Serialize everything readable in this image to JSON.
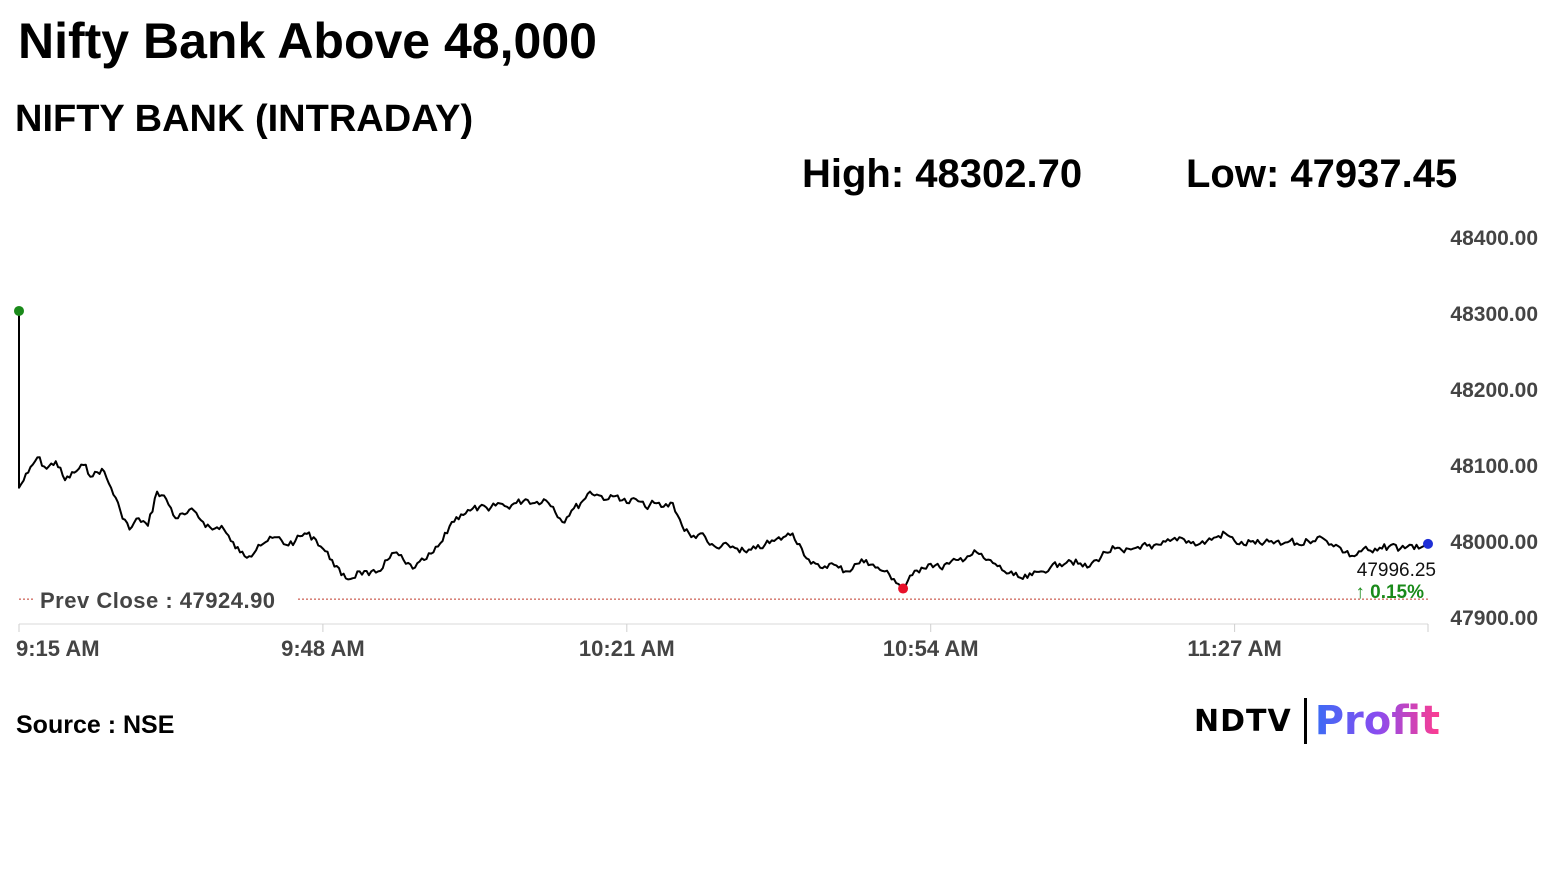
{
  "headline": "Nifty Bank Above 48,000",
  "subtitle": "NIFTY BANK (INTRADAY)",
  "stats": {
    "high": "High: 48302.70",
    "low": "Low: 47937.45"
  },
  "source": "Source : NSE",
  "logo": {
    "ndtv": "NDTV",
    "profit": "Profit"
  },
  "colors": {
    "line": "#000000",
    "high_marker": "#1a8a1a",
    "low_marker": "#e8102a",
    "last_marker": "#1f2fd6",
    "prev_close_line": "#c0392b",
    "change_up": "#1a8a1a",
    "tick_label": "#444444"
  },
  "chart_data": {
    "type": "line",
    "title": "",
    "xlabel": "",
    "ylabel": "",
    "x_range": [
      "9:15 AM",
      "11:48 AM"
    ],
    "x_ticks": [
      "9:15 AM",
      "9:48 AM",
      "10:21 AM",
      "10:54 AM",
      "11:27 AM"
    ],
    "ylim": [
      47900,
      48400
    ],
    "y_ticks": [
      "47900.00",
      "48000.00",
      "48100.00",
      "48200.00",
      "48300.00",
      "48400.00"
    ],
    "grid": false,
    "prev_close": {
      "label": "Prev Close : 47924.90",
      "value": 47924.9
    },
    "last": {
      "label": "47996.25",
      "value": 47996.25,
      "change": "0.15%",
      "direction": "up"
    },
    "markers": [
      {
        "kind": "high",
        "time": "9:15",
        "value": 48302.7
      },
      {
        "kind": "low",
        "time": "10:51",
        "value": 47937.45
      },
      {
        "kind": "last",
        "time": "11:48",
        "value": 47996.25
      }
    ],
    "series": [
      {
        "points": [
          [
            "9:15",
            48302.7
          ],
          [
            "9:15",
            48070
          ],
          [
            "9:16",
            48090
          ],
          [
            "9:17",
            48110
          ],
          [
            "9:18",
            48095
          ],
          [
            "9:19",
            48105
          ],
          [
            "9:20",
            48080
          ],
          [
            "9:21",
            48090
          ],
          [
            "9:22",
            48100
          ],
          [
            "9:23",
            48085
          ],
          [
            "9:24",
            48095
          ],
          [
            "9:25",
            48070
          ],
          [
            "9:26",
            48040
          ],
          [
            "9:27",
            48015
          ],
          [
            "9:28",
            48030
          ],
          [
            "9:29",
            48020
          ],
          [
            "9:30",
            48065
          ],
          [
            "9:31",
            48055
          ],
          [
            "9:32",
            48030
          ],
          [
            "9:33",
            48035
          ],
          [
            "9:34",
            48040
          ],
          [
            "9:35",
            48025
          ],
          [
            "9:36",
            48015
          ],
          [
            "9:37",
            48020
          ],
          [
            "9:38",
            48000
          ],
          [
            "9:39",
            47985
          ],
          [
            "9:40",
            47980
          ],
          [
            "9:41",
            47995
          ],
          [
            "9:42",
            48000
          ],
          [
            "9:43",
            48005
          ],
          [
            "9:44",
            47995
          ],
          [
            "9:45",
            48000
          ],
          [
            "9:46",
            48010
          ],
          [
            "9:47",
            48005
          ],
          [
            "9:48",
            47990
          ],
          [
            "9:49",
            47975
          ],
          [
            "9:50",
            47955
          ],
          [
            "9:51",
            47950
          ],
          [
            "9:52",
            47960
          ],
          [
            "9:53",
            47955
          ],
          [
            "9:54",
            47960
          ],
          [
            "9:55",
            47975
          ],
          [
            "9:56",
            47985
          ],
          [
            "9:57",
            47970
          ],
          [
            "9:58",
            47965
          ],
          [
            "9:59",
            47975
          ],
          [
            "10:00",
            47985
          ],
          [
            "10:01",
            48000
          ],
          [
            "10:02",
            48025
          ],
          [
            "10:03",
            48035
          ],
          [
            "10:04",
            48040
          ],
          [
            "10:05",
            48045
          ],
          [
            "10:06",
            48040
          ],
          [
            "10:07",
            48050
          ],
          [
            "10:08",
            48045
          ],
          [
            "10:09",
            48050
          ],
          [
            "10:10",
            48055
          ],
          [
            "10:11",
            48050
          ],
          [
            "10:12",
            48055
          ],
          [
            "10:13",
            48045
          ],
          [
            "10:14",
            48025
          ],
          [
            "10:15",
            48040
          ],
          [
            "10:16",
            48050
          ],
          [
            "10:17",
            48065
          ],
          [
            "10:18",
            48060
          ],
          [
            "10:19",
            48055
          ],
          [
            "10:20",
            48060
          ],
          [
            "10:21",
            48050
          ],
          [
            "10:22",
            48055
          ],
          [
            "10:23",
            48045
          ],
          [
            "10:24",
            48050
          ],
          [
            "10:25",
            48045
          ],
          [
            "10:26",
            48050
          ],
          [
            "10:27",
            48020
          ],
          [
            "10:28",
            48005
          ],
          [
            "10:29",
            48010
          ],
          [
            "10:30",
            47995
          ],
          [
            "10:31",
            47990
          ],
          [
            "10:32",
            47995
          ],
          [
            "10:33",
            47990
          ],
          [
            "10:34",
            47985
          ],
          [
            "10:35",
            47990
          ],
          [
            "10:36",
            47995
          ],
          [
            "10:37",
            48000
          ],
          [
            "10:38",
            48005
          ],
          [
            "10:39",
            48010
          ],
          [
            "10:40",
            47990
          ],
          [
            "10:41",
            47970
          ],
          [
            "10:42",
            47965
          ],
          [
            "10:43",
            47970
          ],
          [
            "10:44",
            47965
          ],
          [
            "10:45",
            47960
          ],
          [
            "10:46",
            47970
          ],
          [
            "10:47",
            47975
          ],
          [
            "10:48",
            47965
          ],
          [
            "10:49",
            47960
          ],
          [
            "10:50",
            47950
          ],
          [
            "10:51",
            47937.45
          ],
          [
            "10:52",
            47955
          ],
          [
            "10:53",
            47965
          ],
          [
            "10:54",
            47970
          ],
          [
            "10:55",
            47965
          ],
          [
            "10:56",
            47970
          ],
          [
            "10:57",
            47975
          ],
          [
            "10:58",
            47980
          ],
          [
            "10:59",
            47985
          ],
          [
            "11:00",
            47975
          ],
          [
            "11:01",
            47970
          ],
          [
            "11:02",
            47960
          ],
          [
            "11:03",
            47955
          ],
          [
            "11:04",
            47950
          ],
          [
            "11:05",
            47955
          ],
          [
            "11:06",
            47960
          ],
          [
            "11:07",
            47965
          ],
          [
            "11:08",
            47970
          ],
          [
            "11:09",
            47975
          ],
          [
            "11:10",
            47970
          ],
          [
            "11:11",
            47965
          ],
          [
            "11:12",
            47975
          ],
          [
            "11:13",
            47985
          ],
          [
            "11:14",
            47990
          ],
          [
            "11:15",
            47985
          ],
          [
            "11:16",
            47990
          ],
          [
            "11:17",
            47995
          ],
          [
            "11:18",
            47990
          ],
          [
            "11:19",
            47995
          ],
          [
            "11:20",
            48000
          ],
          [
            "11:21",
            48005
          ],
          [
            "11:22",
            48000
          ],
          [
            "11:23",
            47995
          ],
          [
            "11:24",
            48000
          ],
          [
            "11:25",
            48005
          ],
          [
            "11:26",
            48010
          ],
          [
            "11:27",
            48000
          ],
          [
            "11:28",
            47995
          ],
          [
            "11:29",
            48000
          ],
          [
            "11:30",
            47995
          ],
          [
            "11:31",
            48000
          ],
          [
            "11:32",
            47995
          ],
          [
            "11:33",
            48000
          ],
          [
            "11:34",
            47995
          ],
          [
            "11:35",
            48000
          ],
          [
            "11:36",
            48005
          ],
          [
            "11:37",
            48000
          ],
          [
            "11:38",
            47995
          ],
          [
            "11:39",
            47985
          ],
          [
            "11:40",
            47980
          ],
          [
            "11:41",
            47990
          ],
          [
            "11:42",
            47985
          ],
          [
            "11:43",
            47990
          ],
          [
            "11:44",
            47995
          ],
          [
            "11:45",
            47990
          ],
          [
            "11:46",
            47995
          ],
          [
            "11:47",
            47990
          ],
          [
            "11:48",
            47996.25
          ]
        ]
      }
    ]
  }
}
